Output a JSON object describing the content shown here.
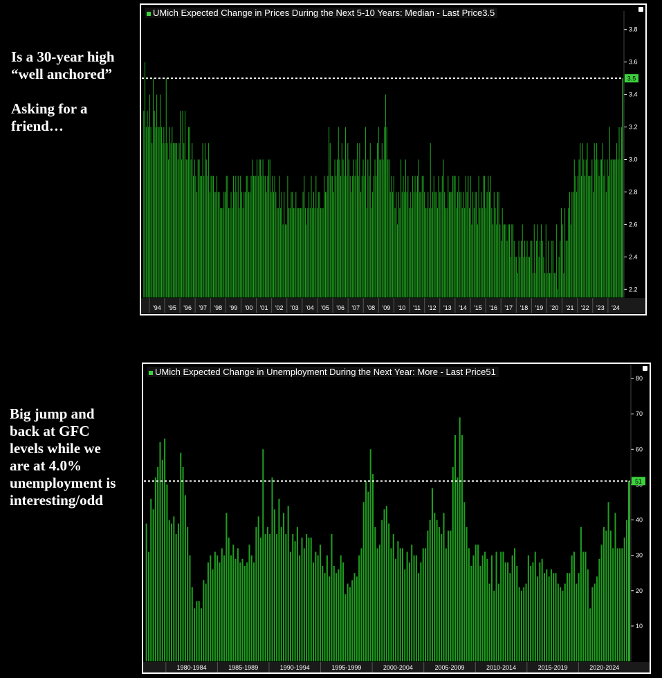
{
  "annotations": {
    "top_note_1": "Is a 30-year high\n“well anchored”",
    "top_note_2": "Asking for a\nfriend…",
    "bottom_note": "Big jump and\nback at GFC\nlevels while we\nare at 4.0%\nunemployment is\ninteresting/odd"
  },
  "colors": {
    "bar": "#1f9e1f",
    "bar_highlight": "#45e845",
    "grid_line": "#ffffff",
    "tag_bg": "#3dd13d"
  },
  "chart_data": [
    {
      "type": "bar",
      "title": "UMich Expected Change in Prices During the Next 5-10 Years: Median - Last Price",
      "last_price_label": "3.5",
      "last_price": 3.5,
      "ylim": [
        2.15,
        3.85
      ],
      "yticks": [
        2.2,
        2.4,
        2.6,
        2.8,
        3.0,
        3.2,
        3.4,
        3.6,
        3.8
      ],
      "ytick_labels": [
        "2.2",
        "2.4",
        "2.6",
        "2.8",
        "3.0",
        "3.2",
        "3.4",
        "3.6",
        "3.8"
      ],
      "xticks": [
        "'94",
        "'95",
        "'96",
        "'97",
        "'98",
        "'99",
        "'00",
        "'01",
        "'02",
        "'03",
        "'04",
        "'05",
        "'06",
        "'07",
        "'08",
        "'09",
        "'10",
        "'11",
        "'12",
        "'13",
        "'14",
        "'15",
        "'16",
        "'17",
        "'18",
        "'19",
        "'20",
        "'21",
        "'22",
        "'23",
        "'24"
      ],
      "x_start": 1993.6,
      "x_end": 2025.0,
      "grid": false,
      "series": [
        {
          "frequency": "monthly, Jun 1993 - Dec 2024",
          "values": [
            3.3,
            3.6,
            3.2,
            3.3,
            3.2,
            3.4,
            3.2,
            3.1,
            3.5,
            3.3,
            3.2,
            3.4,
            3.2,
            3.2,
            3.4,
            3.2,
            3.1,
            3.2,
            3.1,
            3.5,
            3.1,
            3.0,
            3.2,
            3.1,
            3.2,
            3.1,
            3.1,
            3.1,
            3.1,
            3.0,
            3.1,
            3.3,
            3.0,
            3.3,
            3.1,
            3.3,
            3.0,
            3.0,
            3.2,
            3.2,
            3.0,
            3.1,
            2.9,
            3.0,
            2.9,
            2.8,
            3.0,
            3.0,
            2.9,
            2.9,
            3.1,
            2.9,
            3.1,
            3.0,
            2.9,
            3.1,
            2.8,
            2.9,
            2.9,
            2.9,
            2.8,
            2.8,
            2.9,
            2.8,
            2.8,
            2.7,
            2.7,
            2.7,
            2.8,
            2.8,
            2.9,
            2.9,
            2.7,
            2.7,
            2.8,
            2.7,
            2.9,
            2.8,
            2.9,
            2.8,
            2.9,
            2.7,
            2.9,
            2.8,
            2.7,
            2.8,
            2.8,
            2.9,
            2.9,
            2.8,
            2.8,
            2.9,
            3.0,
            2.9,
            2.9,
            2.9,
            3.0,
            2.9,
            3.0,
            3.0,
            2.9,
            3.0,
            2.9,
            2.9,
            2.8,
            2.9,
            3.0,
            3.0,
            2.8,
            2.9,
            2.8,
            2.9,
            2.8,
            2.7,
            2.7,
            2.9,
            2.7,
            2.8,
            2.6,
            2.8,
            2.6,
            2.6,
            2.9,
            2.7,
            2.7,
            2.8,
            2.8,
            2.7,
            2.7,
            2.8,
            2.7,
            2.7,
            2.7,
            2.7,
            2.7,
            2.8,
            2.9,
            2.7,
            2.6,
            2.7,
            2.8,
            2.7,
            2.9,
            2.7,
            2.8,
            2.7,
            2.9,
            2.7,
            2.8,
            2.8,
            2.7,
            2.7,
            2.7,
            2.9,
            2.8,
            2.8,
            2.9,
            3.2,
            3.1,
            2.9,
            2.9,
            2.8,
            3.0,
            2.9,
            3.0,
            3.2,
            3.0,
            2.9,
            3.1,
            3.0,
            2.9,
            3.2,
            2.9,
            3.1,
            3.0,
            2.9,
            2.8,
            2.9,
            3.0,
            2.9,
            3.0,
            3.1,
            2.9,
            3.1,
            2.8,
            2.9,
            3.0,
            2.9,
            3.2,
            2.7,
            3.0,
            2.9,
            3.1,
            2.7,
            2.8,
            2.9,
            3.0,
            2.9,
            3.1,
            3.2,
            3.0,
            3.0,
            3.1,
            3.0,
            3.2,
            3.4,
            3.2,
            3.0,
            3.0,
            2.8,
            2.9,
            2.8,
            2.9,
            2.7,
            2.8,
            2.6,
            2.8,
            2.7,
            3.0,
            2.8,
            2.9,
            2.8,
            3.0,
            2.8,
            2.9,
            2.7,
            2.8,
            2.7,
            2.9,
            2.8,
            2.9,
            2.8,
            2.9,
            3.0,
            2.8,
            2.8,
            2.9,
            2.9,
            2.8,
            2.7,
            2.7,
            2.8,
            2.7,
            3.1,
            2.7,
            2.8,
            2.9,
            2.8,
            2.8,
            2.7,
            2.9,
            2.8,
            2.8,
            2.9,
            3.0,
            2.8,
            2.7,
            2.7,
            2.9,
            2.8,
            2.8,
            2.8,
            2.9,
            2.9,
            2.9,
            2.7,
            2.8,
            2.9,
            2.8,
            2.8,
            2.7,
            2.8,
            2.7,
            2.9,
            2.8,
            2.9,
            2.7,
            2.9,
            2.6,
            2.8,
            2.7,
            2.8,
            2.8,
            2.6,
            2.9,
            2.7,
            2.8,
            2.7,
            2.9,
            2.9,
            2.7,
            2.8,
            2.9,
            2.8,
            2.9,
            2.7,
            2.6,
            2.8,
            2.7,
            2.6,
            2.8,
            2.8,
            2.6,
            2.5,
            2.7,
            2.6,
            2.6,
            2.6,
            2.5,
            2.6,
            2.6,
            2.4,
            2.6,
            2.6,
            2.5,
            2.4,
            2.4,
            2.3,
            2.5,
            2.4,
            2.5,
            2.6,
            2.4,
            2.5,
            2.4,
            2.5,
            2.4,
            2.4,
            2.5,
            2.5,
            2.3,
            2.6,
            2.3,
            2.5,
            2.6,
            2.4,
            2.5,
            2.6,
            2.5,
            2.4,
            2.3,
            2.6,
            2.3,
            2.5,
            2.3,
            2.3,
            2.5,
            2.5,
            2.3,
            2.3,
            2.6,
            2.2,
            2.4,
            2.5,
            2.7,
            2.6,
            2.3,
            2.7,
            2.5,
            2.5,
            2.7,
            2.8,
            2.6,
            2.8,
            2.8,
            3.0,
            2.9,
            2.8,
            2.9,
            3.0,
            3.1,
            2.9,
            3.1,
            3.0,
            2.9,
            3.0,
            3.1,
            2.9,
            2.9,
            2.9,
            3.0,
            2.8,
            3.1,
            3.0,
            3.1,
            3.0,
            2.9,
            3.0,
            3.0,
            3.1,
            2.9,
            3.0,
            2.8,
            3.0,
            2.9,
            3.2,
            3.0,
            3.0,
            3.0,
            3.0,
            3.0,
            3.1,
            3.0,
            3.2,
            3.0,
            3.2,
            3.5
          ]
        }
      ]
    },
    {
      "type": "bar",
      "title": "UMich Expected Change in Unemployment During the Next Year: More - Last Price",
      "last_price_label": "51",
      "last_price": 51,
      "ylim": [
        0,
        81
      ],
      "yticks": [
        10,
        20,
        30,
        40,
        50,
        60,
        70,
        80
      ],
      "ytick_labels": [
        "10",
        "20",
        "30",
        "40",
        "50",
        "60",
        "70",
        "80"
      ],
      "xticks": [
        "1980-1984",
        "1985-1989",
        "1990-1994",
        "1995-1999",
        "2000-2004",
        "2005-2009",
        "2010-2014",
        "2015-2019",
        "2020-2024"
      ],
      "x_start": 1978.0,
      "x_end": 2025.0,
      "grid": false,
      "series": [
        {
          "frequency": "quarterly, 1978 - 2024",
          "values": [
            39,
            31,
            46,
            43,
            52,
            55,
            62,
            57,
            63,
            50,
            40,
            39,
            41,
            36,
            39,
            59,
            55,
            47,
            38,
            30,
            21,
            15,
            17,
            17,
            15,
            23,
            22,
            28,
            30,
            26,
            31,
            30,
            28,
            32,
            30,
            42,
            35,
            30,
            33,
            29,
            32,
            28,
            29,
            27,
            28,
            33,
            30,
            28,
            38,
            41,
            35,
            60,
            36,
            38,
            36,
            52,
            43,
            36,
            46,
            38,
            42,
            36,
            44,
            31,
            36,
            34,
            38,
            30,
            35,
            32,
            36,
            35,
            35,
            28,
            31,
            30,
            33,
            27,
            25,
            30,
            24,
            36,
            27,
            25,
            26,
            30,
            28,
            19,
            22,
            21,
            23,
            25,
            24,
            30,
            32,
            45,
            51,
            48,
            60,
            53,
            38,
            32,
            33,
            40,
            43,
            44,
            39,
            32,
            36,
            29,
            34,
            32,
            32,
            26,
            31,
            28,
            33,
            30,
            30,
            25,
            28,
            32,
            32,
            37,
            40,
            49,
            42,
            40,
            38,
            36,
            42,
            32,
            37,
            37,
            55,
            64,
            52,
            69,
            64,
            45,
            38,
            32,
            27,
            30,
            33,
            33,
            27,
            30,
            31,
            29,
            22,
            30,
            20,
            31,
            22,
            31,
            31,
            28,
            28,
            25,
            30,
            32,
            27,
            21,
            20,
            21,
            22,
            30,
            27,
            28,
            31,
            24,
            28,
            29,
            25,
            26,
            24,
            26,
            25,
            25,
            22,
            21,
            20,
            22,
            25,
            25,
            30,
            31,
            22,
            25,
            38,
            31,
            31,
            26,
            15,
            21,
            22,
            24,
            29,
            33,
            38,
            37,
            45,
            37,
            32,
            42,
            32,
            32,
            32,
            35,
            40,
            51
          ]
        }
      ]
    }
  ]
}
